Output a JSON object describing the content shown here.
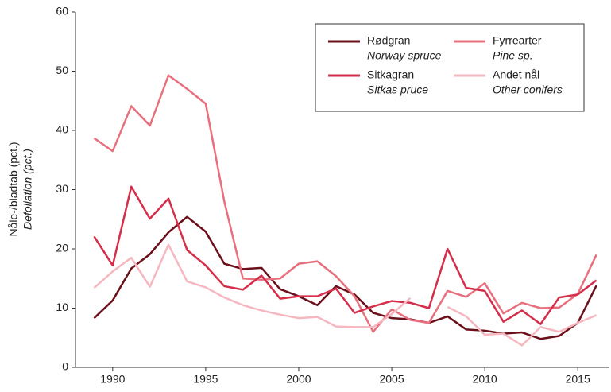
{
  "chart_data": {
    "type": "line",
    "y_label": "Nåle-/bladtab (pct.)",
    "y_label_en": "Defoliation (pct.)",
    "x": [
      1989,
      1990,
      1991,
      1992,
      1993,
      1994,
      1995,
      1996,
      1997,
      1998,
      1999,
      2000,
      2001,
      2002,
      2003,
      2004,
      2005,
      2006,
      2007,
      2008,
      2009,
      2010,
      2011,
      2012,
      2013,
      2014,
      2015,
      2016
    ],
    "series": [
      {
        "name": "Rødgran",
        "subname": "Norway spruce",
        "color": "#6b0f1a",
        "values": [
          8.3,
          11.3,
          16.7,
          19.1,
          22.8,
          25.4,
          22.9,
          17.5,
          16.6,
          16.8,
          13.2,
          12.0,
          10.5,
          13.7,
          12.3,
          9.2,
          8.3,
          8.1,
          7.5,
          8.6,
          6.4,
          6.2,
          5.7,
          5.9,
          4.8,
          5.3,
          7.5,
          13.8
        ]
      },
      {
        "name": "Fyrrearter",
        "subname": "Pine sp.",
        "color": "#e8707e",
        "values": [
          38.7,
          36.5,
          44.1,
          40.8,
          49.3,
          47.0,
          44.5,
          28.0,
          15.0,
          14.8,
          15.0,
          17.5,
          17.9,
          15.4,
          12.0,
          6.0,
          9.8,
          8.0,
          7.5,
          12.9,
          11.9,
          14.2,
          9.1,
          10.9,
          10.0,
          10.1,
          12.4,
          19.0
        ]
      },
      {
        "name": "Sitkagran",
        "subname": "Sitkas pruce",
        "color": "#d42e4a",
        "values": [
          22.1,
          17.2,
          30.5,
          25.1,
          28.5,
          19.8,
          17.2,
          13.7,
          13.1,
          15.5,
          11.6,
          12.0,
          12.0,
          13.3,
          9.2,
          10.3,
          11.2,
          10.9,
          10.0,
          20.0,
          13.4,
          12.9,
          7.7,
          9.6,
          7.3,
          11.8,
          12.3,
          14.7
        ]
      },
      {
        "name": "Andet nål",
        "subname": "Other conifers",
        "color": "#f5b8c0",
        "values": [
          13.4,
          16.2,
          18.5,
          13.6,
          20.7,
          14.5,
          13.5,
          11.8,
          10.5,
          9.6,
          8.9,
          8.3,
          8.5,
          6.9,
          6.8,
          6.8,
          9.0,
          11.7,
          null,
          10.2,
          8.6,
          5.5,
          5.7,
          3.7,
          6.8,
          6.0,
          7.5,
          8.8
        ]
      }
    ],
    "xlim": [
      1988,
      2016.7
    ],
    "xticks": [
      1990,
      1995,
      2000,
      2005,
      2010,
      2015
    ],
    "ylim": [
      0,
      60
    ],
    "yticks": [
      0,
      10,
      20,
      30,
      40,
      50,
      60
    ],
    "grid": false,
    "legend": "upper right"
  }
}
